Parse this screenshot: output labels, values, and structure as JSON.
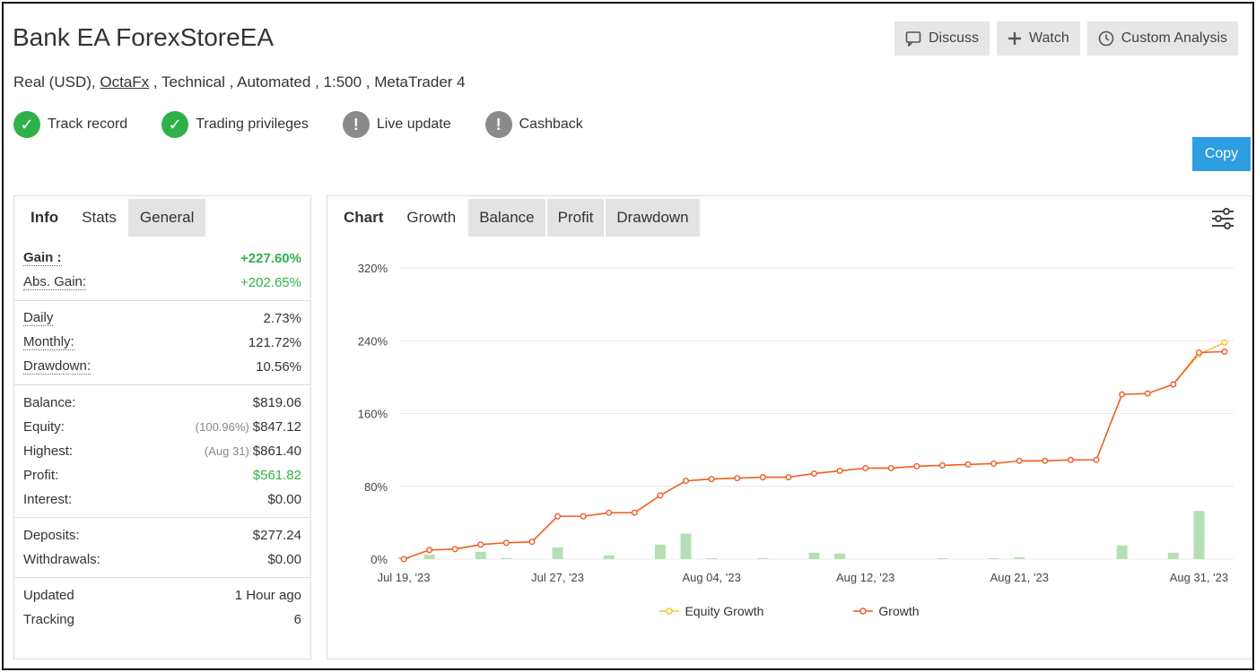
{
  "header": {
    "title": "Bank EA ForexStoreEA",
    "sub_prefix": "Real (USD), ",
    "broker": "OctaFx",
    "sub_suffix": " , Technical , Automated , 1:500 , MetaTrader 4"
  },
  "badges": [
    {
      "label": "Track record",
      "status": "ok"
    },
    {
      "label": "Trading privileges",
      "status": "ok"
    },
    {
      "label": "Live update",
      "status": "warn"
    },
    {
      "label": "Cashback",
      "status": "warn"
    }
  ],
  "actions": {
    "discuss": "Discuss",
    "watch": "Watch",
    "custom_analysis": "Custom Analysis",
    "copy": "Copy"
  },
  "info_tabs": [
    "Info",
    "Stats",
    "General"
  ],
  "info": {
    "gain_label": "Gain :",
    "gain_value": "+227.60%",
    "abs_gain_label": "Abs. Gain:",
    "abs_gain_value": "+202.65%",
    "daily_label": "Daily",
    "daily_value": "2.73%",
    "monthly_label": "Monthly:",
    "monthly_value": "121.72%",
    "drawdown_label": "Drawdown:",
    "drawdown_value": "10.56%",
    "balance_label": "Balance:",
    "balance_value": "$819.06",
    "equity_label": "Equity:",
    "equity_note": "(100.96%)",
    "equity_value": "$847.12",
    "highest_label": "Highest:",
    "highest_note": "(Aug 31)",
    "highest_value": "$861.40",
    "profit_label": "Profit:",
    "profit_value": "$561.82",
    "interest_label": "Interest:",
    "interest_value": "$0.00",
    "deposits_label": "Deposits:",
    "deposits_value": "$277.24",
    "withdrawals_label": "Withdrawals:",
    "withdrawals_value": "$0.00",
    "updated_label": "Updated",
    "updated_value": "1 Hour ago",
    "tracking_label": "Tracking",
    "tracking_value": "6"
  },
  "chart_tabs": [
    "Chart",
    "Growth",
    "Balance",
    "Profit",
    "Drawdown"
  ],
  "colors": {
    "growth": "#f05a28",
    "equity": "#f7c325",
    "bars": "#b5dfb5",
    "grid": "#e8e8e8",
    "green": "#2fb14a",
    "accent": "#2e9ee2"
  },
  "chart_data": {
    "type": "line",
    "ylim": [
      0,
      320
    ],
    "yticks": [
      0,
      80,
      160,
      240,
      320
    ],
    "ytick_labels": [
      "0%",
      "80%",
      "160%",
      "240%",
      "320%"
    ],
    "xtick_labels": [
      "Jul 19, '23",
      "Jul 27, '23",
      "Aug 04, '23",
      "Aug 12, '23",
      "Aug 21, '23",
      "Aug 31, '23"
    ],
    "xtick_index": [
      0,
      6,
      12,
      18,
      24,
      31
    ],
    "series": [
      {
        "name": "Equity Growth",
        "values": [
          0,
          10,
          11,
          16,
          18,
          19,
          47,
          47,
          51,
          51,
          70,
          86,
          88,
          89,
          90,
          90,
          94,
          97,
          100,
          100,
          102,
          103,
          104,
          105,
          108,
          108,
          109,
          109,
          181,
          182,
          192,
          225,
          238
        ]
      },
      {
        "name": "Growth",
        "values": [
          0,
          10,
          11,
          16,
          18,
          19,
          47,
          47,
          51,
          51,
          70,
          86,
          88,
          89,
          90,
          90,
          94,
          97,
          100,
          100,
          102,
          103,
          104,
          105,
          108,
          108,
          109,
          109,
          181,
          182,
          192,
          227,
          228
        ]
      }
    ],
    "bars": [
      2,
      5,
      0,
      8,
      1,
      0,
      13,
      0,
      4,
      0,
      16,
      28,
      1,
      0,
      1,
      0,
      7,
      6,
      0,
      0,
      0,
      1,
      0,
      1,
      2,
      0,
      0,
      0,
      15,
      0,
      7,
      53,
      0
    ]
  }
}
